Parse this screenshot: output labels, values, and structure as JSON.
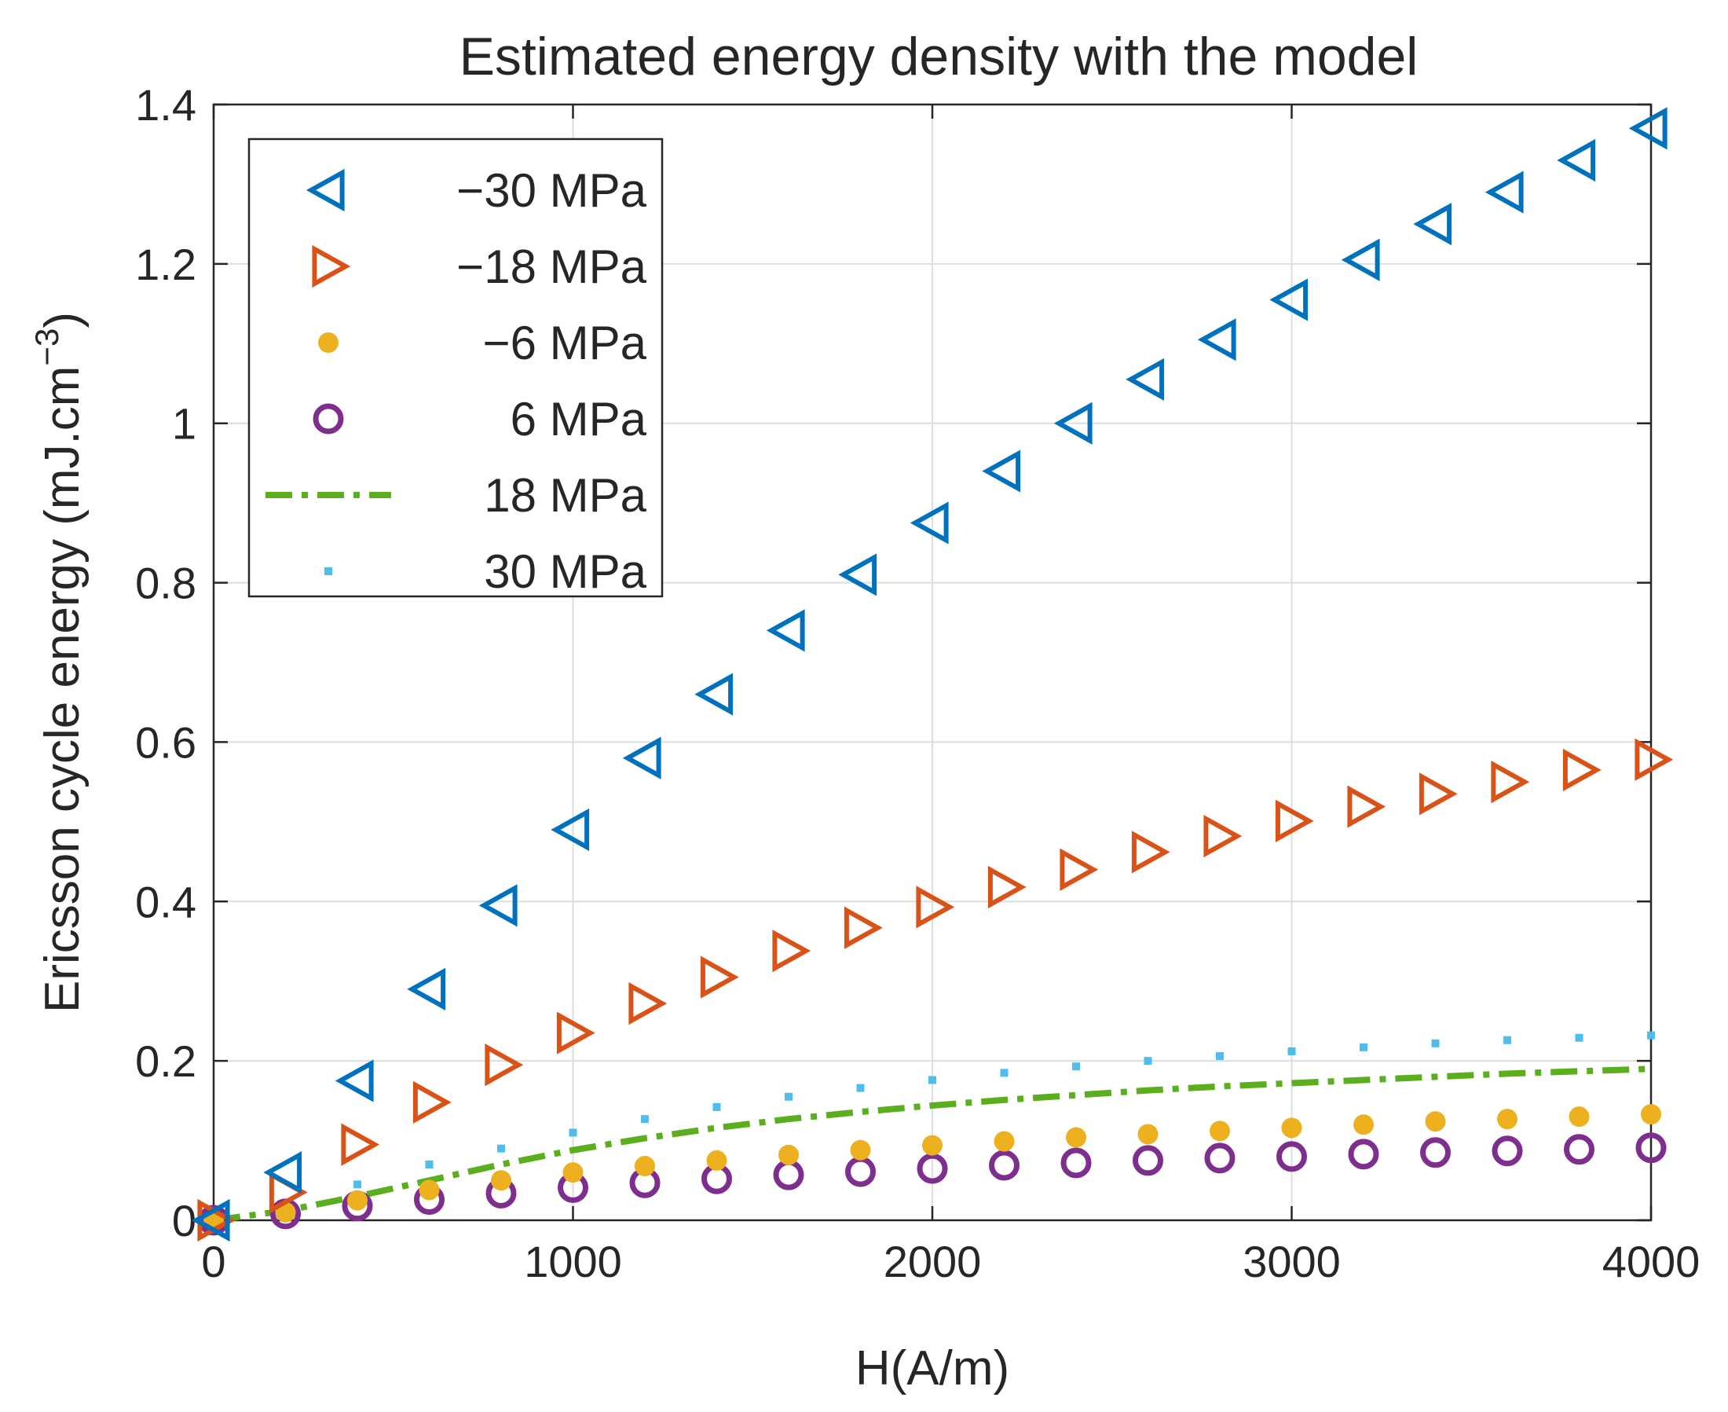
{
  "chart_data": {
    "type": "scatter",
    "title": "Estimated energy density with the model",
    "xlabel": "H(A/m)",
    "ylabel_main": "Ericsson cycle energy (mJ.cm",
    "ylabel_sup": "−3",
    "ylabel_close": ")",
    "xlim": [
      0,
      4000
    ],
    "ylim": [
      0,
      1.4
    ],
    "xticks": [
      0,
      1000,
      2000,
      3000,
      4000
    ],
    "xtick_labels": [
      "0",
      "1000",
      "2000",
      "3000",
      "4000"
    ],
    "yticks": [
      0,
      0.2,
      0.4,
      0.6,
      0.8,
      1.0,
      1.2,
      1.4
    ],
    "ytick_labels": [
      "0",
      "0.2",
      "0.4",
      "0.6",
      "0.8",
      "1",
      "1.2",
      "1.4"
    ],
    "grid": true,
    "legend_position": "top-left",
    "x": [
      0,
      200,
      400,
      600,
      800,
      1000,
      1200,
      1400,
      1600,
      1800,
      2000,
      2200,
      2400,
      2600,
      2800,
      3000,
      3200,
      3400,
      3600,
      3800,
      4000
    ],
    "series": [
      {
        "name": "−30 MPa",
        "marker": "triangle-left",
        "color": "#0072BD",
        "values": [
          0,
          0.06,
          0.175,
          0.29,
          0.395,
          0.49,
          0.58,
          0.66,
          0.74,
          0.81,
          0.875,
          0.94,
          1.0,
          1.055,
          1.105,
          1.155,
          1.205,
          1.25,
          1.29,
          1.33,
          1.37
        ]
      },
      {
        "name": "−18 MPa",
        "marker": "triangle-right",
        "color": "#D95319",
        "values": [
          0,
          0.035,
          0.095,
          0.148,
          0.195,
          0.235,
          0.272,
          0.305,
          0.338,
          0.367,
          0.393,
          0.418,
          0.44,
          0.462,
          0.482,
          0.501,
          0.519,
          0.535,
          0.55,
          0.565,
          0.578
        ]
      },
      {
        "name": "−6 MPa",
        "marker": "dot",
        "color": "#EDB120",
        "values": [
          0,
          0.01,
          0.025,
          0.038,
          0.05,
          0.06,
          0.068,
          0.075,
          0.082,
          0.088,
          0.094,
          0.099,
          0.104,
          0.108,
          0.112,
          0.116,
          0.12,
          0.124,
          0.127,
          0.13,
          0.133
        ]
      },
      {
        "name": "6 MPa",
        "marker": "circle",
        "color": "#7E2F8E",
        "values": [
          0,
          0.008,
          0.018,
          0.026,
          0.034,
          0.041,
          0.047,
          0.052,
          0.057,
          0.061,
          0.065,
          0.069,
          0.072,
          0.075,
          0.078,
          0.08,
          0.083,
          0.085,
          0.087,
          0.089,
          0.091
        ]
      },
      {
        "name": "18 MPa",
        "marker": "dash-dot-line",
        "color": "#5BAE1E",
        "values": [
          0,
          0.012,
          0.03,
          0.05,
          0.07,
          0.088,
          0.103,
          0.116,
          0.127,
          0.136,
          0.144,
          0.151,
          0.157,
          0.163,
          0.168,
          0.172,
          0.176,
          0.18,
          0.184,
          0.187,
          0.19
        ]
      },
      {
        "name": "30 MPa",
        "marker": "point",
        "color": "#4DBEEE",
        "values": [
          0,
          0.02,
          0.045,
          0.07,
          0.09,
          0.11,
          0.127,
          0.142,
          0.155,
          0.166,
          0.176,
          0.185,
          0.193,
          0.2,
          0.206,
          0.212,
          0.217,
          0.222,
          0.226,
          0.229,
          0.232
        ]
      }
    ]
  }
}
